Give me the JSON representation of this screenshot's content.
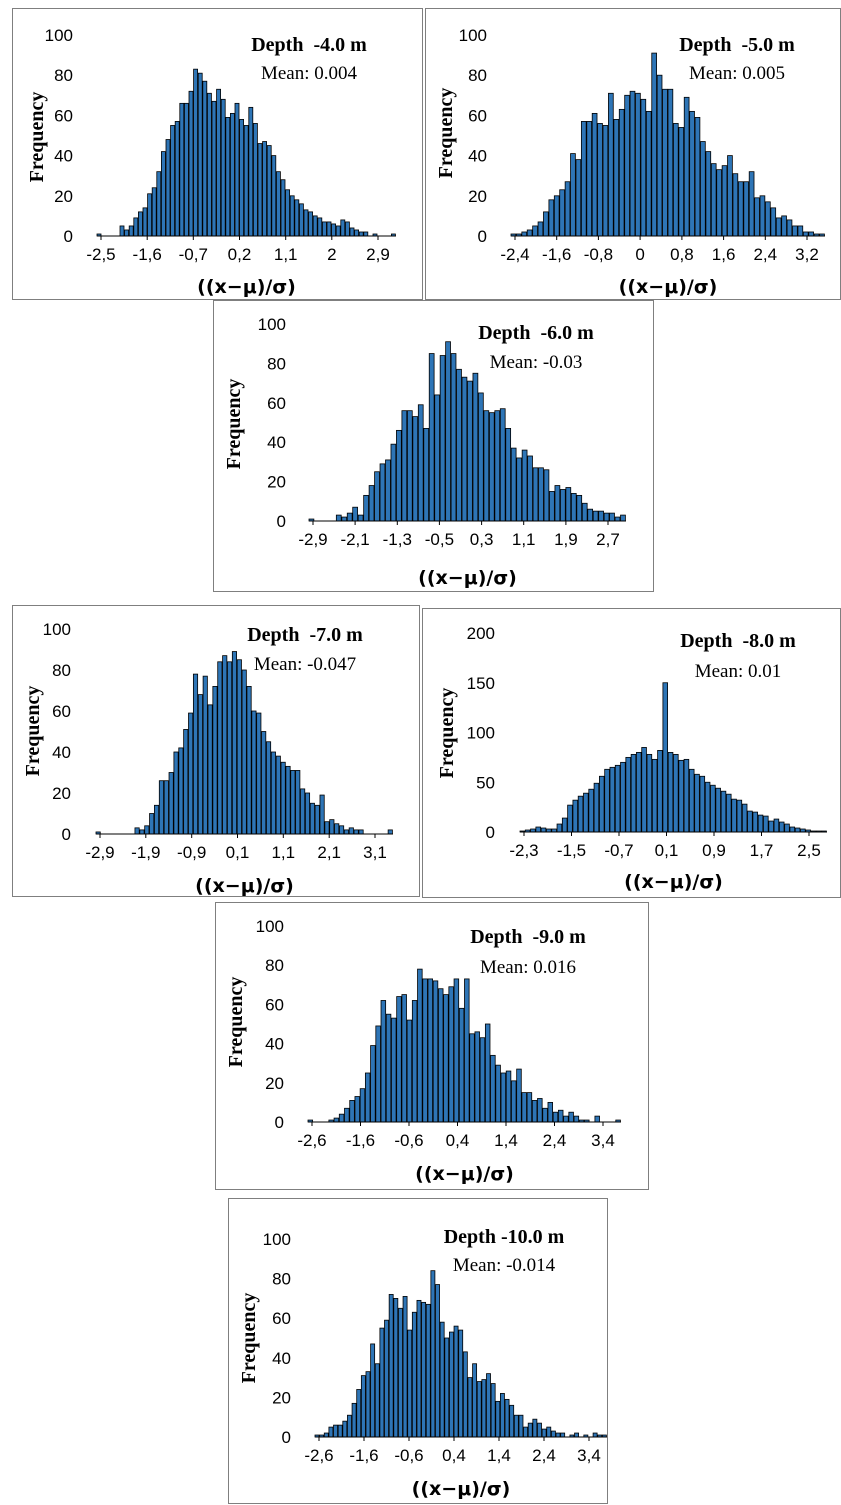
{
  "bar_color": "#2e75b6",
  "chart_data": [
    {
      "type": "bar",
      "title": "Depth  -4.0 m",
      "mean_label": "Mean: 0.004",
      "ylabel": "Frequency",
      "xlabel": "((x−μ)/σ)",
      "ylim": [
        0,
        100
      ],
      "yticks": [
        "0",
        "20",
        "40",
        "60",
        "80",
        "100"
      ],
      "xticks": [
        "-2,5",
        "-1,6",
        "-0,7",
        "0,2",
        "1,1",
        "2",
        "2,9"
      ],
      "values": [
        1,
        0,
        0,
        0,
        0,
        5,
        3,
        5,
        9,
        12,
        14,
        21,
        24,
        32,
        42,
        48,
        55,
        57,
        66,
        66,
        72,
        83,
        81,
        77,
        71,
        67,
        73,
        68,
        59,
        61,
        66,
        58,
        55,
        64,
        56,
        46,
        47,
        45,
        40,
        32,
        28,
        23,
        20,
        18,
        16,
        13,
        12,
        10,
        9,
        7,
        7,
        6,
        5,
        8,
        7,
        4,
        3,
        2,
        2,
        0,
        1,
        0,
        0,
        0,
        1
      ]
    },
    {
      "type": "bar",
      "title": "Depth  -5.0 m",
      "mean_label": "Mean: 0.005",
      "ylabel": "Frequency",
      "xlabel": "((x−μ)/σ)",
      "ylim": [
        0,
        100
      ],
      "yticks": [
        "0",
        "20",
        "40",
        "60",
        "80",
        "100"
      ],
      "xticks": [
        "-2,4",
        "-1,6",
        "-0,8",
        "0",
        "0,8",
        "1,6",
        "2,4",
        "3,2"
      ],
      "values": [
        1,
        1,
        2,
        3,
        5,
        7,
        12,
        18,
        20,
        23,
        27,
        41,
        38,
        57,
        57,
        61,
        56,
        55,
        71,
        58,
        63,
        70,
        72,
        71,
        68,
        62,
        91,
        80,
        73,
        73,
        56,
        54,
        69,
        62,
        59,
        47,
        42,
        36,
        33,
        35,
        40,
        31,
        27,
        27,
        32,
        19,
        20,
        17,
        14,
        9,
        10,
        8,
        5,
        5,
        2,
        2,
        1,
        1
      ]
    },
    {
      "type": "bar",
      "title": "Depth  -6.0 m",
      "mean_label": "Mean: -0.03",
      "ylabel": "Frequency",
      "xlabel": "((x−μ)/σ)",
      "ylim": [
        0,
        100
      ],
      "yticks": [
        "0",
        "20",
        "40",
        "60",
        "80",
        "100"
      ],
      "xticks": [
        "-2,9",
        "-2,1",
        "-1,3",
        "-0,5",
        "0,3",
        "1,1",
        "1,9",
        "2,7"
      ],
      "values": [
        1,
        0,
        0,
        0,
        0,
        3,
        2,
        4,
        7,
        3,
        13,
        18,
        25,
        29,
        31,
        39,
        46,
        56,
        56,
        53,
        59,
        47,
        85,
        64,
        84,
        91,
        85,
        77,
        73,
        71,
        75,
        65,
        56,
        55,
        56,
        57,
        47,
        37,
        32,
        36,
        33,
        27,
        27,
        26,
        15,
        18,
        16,
        17,
        14,
        13,
        9,
        6,
        5,
        5,
        4,
        4,
        2,
        3
      ]
    },
    {
      "type": "bar",
      "title": "Depth  -7.0 m",
      "mean_label": "Mean: -0.047",
      "ylabel": "Frequency",
      "xlabel": "((x−μ)/σ)",
      "ylim": [
        0,
        100
      ],
      "yticks": [
        "0",
        "20",
        "40",
        "60",
        "80",
        "100"
      ],
      "xticks": [
        "-2,9",
        "-1,9",
        "-0,9",
        "0,1",
        "1,1",
        "2,1",
        "3,1"
      ],
      "values": [
        1,
        0,
        0,
        0,
        0,
        0,
        0,
        0,
        3,
        2,
        4,
        10,
        14,
        26,
        26,
        30,
        40,
        42,
        51,
        59,
        78,
        68,
        77,
        63,
        72,
        84,
        87,
        84,
        89,
        85,
        80,
        72,
        60,
        59,
        50,
        45,
        40,
        38,
        35,
        33,
        31,
        31,
        22,
        20,
        15,
        14,
        19,
        6,
        7,
        5,
        4,
        2,
        3,
        2,
        2,
        0,
        0,
        0,
        0,
        0,
        2
      ]
    },
    {
      "type": "bar",
      "title": "Depth  -8.0 m",
      "mean_label": "Mean: 0.01",
      "ylabel": "Frequency",
      "xlabel": "((x−μ)/σ)",
      "ylim": [
        0,
        200
      ],
      "yticks": [
        "0",
        "50",
        "100",
        "150",
        "200"
      ],
      "xticks": [
        "-2,3",
        "-1,5",
        "-0,7",
        "0,1",
        "0,9",
        "1,7",
        "2,5"
      ],
      "values": [
        1,
        2,
        3,
        5,
        4,
        3,
        3,
        8,
        14,
        27,
        32,
        36,
        39,
        43,
        49,
        56,
        63,
        65,
        67,
        70,
        75,
        78,
        80,
        85,
        78,
        73,
        82,
        150,
        80,
        78,
        72,
        73,
        63,
        58,
        56,
        50,
        47,
        44,
        41,
        38,
        33,
        32,
        28,
        21,
        20,
        17,
        16,
        11,
        13,
        10,
        8,
        5,
        4,
        3,
        2,
        1,
        1,
        1
      ]
    },
    {
      "type": "bar",
      "title": "Depth  -9.0 m",
      "mean_label": "Mean: 0.016",
      "ylabel": "Frequency",
      "xlabel": "((x−μ)/σ)",
      "ylim": [
        0,
        100
      ],
      "yticks": [
        "0",
        "20",
        "40",
        "60",
        "80",
        "100"
      ],
      "xticks": [
        "-2,6",
        "-1,6",
        "-0,6",
        "0,4",
        "1,4",
        "2,4",
        "3,4"
      ],
      "values": [
        1,
        0,
        0,
        0,
        1,
        2,
        4,
        7,
        11,
        13,
        17,
        25,
        39,
        49,
        62,
        55,
        53,
        64,
        65,
        52,
        62,
        78,
        73,
        73,
        72,
        68,
        65,
        69,
        73,
        58,
        73,
        45,
        46,
        43,
        50,
        34,
        29,
        25,
        26,
        21,
        27,
        15,
        15,
        11,
        12,
        7,
        10,
        5,
        6,
        3,
        5,
        3,
        1,
        1,
        0,
        3,
        0,
        0,
        0,
        1
      ]
    },
    {
      "type": "bar",
      "title": "Depth -10.0 m",
      "mean_label": "Mean: -0.014",
      "ylabel": "Frequency",
      "xlabel": "((x−μ)/σ)",
      "ylim": [
        0,
        100
      ],
      "yticks": [
        "0",
        "20",
        "40",
        "60",
        "80",
        "100"
      ],
      "xticks": [
        "-2,6",
        "-1,6",
        "-0,6",
        "0,4",
        "1,4",
        "2,4",
        "3,4"
      ],
      "values": [
        1,
        1,
        2,
        5,
        6,
        6,
        8,
        11,
        17,
        24,
        31,
        33,
        47,
        37,
        55,
        59,
        72,
        70,
        65,
        71,
        54,
        63,
        69,
        68,
        67,
        84,
        77,
        58,
        50,
        53,
        56,
        54,
        43,
        30,
        37,
        28,
        29,
        32,
        27,
        18,
        22,
        19,
        16,
        11,
        11,
        5,
        7,
        9,
        7,
        4,
        5,
        3,
        2,
        2,
        0,
        1,
        2,
        0,
        1,
        0,
        2,
        1,
        1
      ]
    }
  ]
}
